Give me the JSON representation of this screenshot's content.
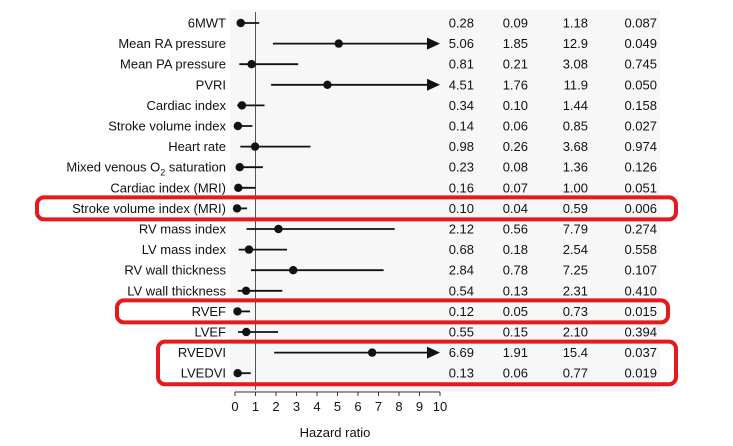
{
  "chart_data": {
    "type": "forest",
    "title": "",
    "xlabel": "Hazard ratio",
    "ylabel": "",
    "xlim": [
      0,
      10
    ],
    "xticks": [
      "0",
      "1",
      "2",
      "3",
      "4",
      "5",
      "6",
      "7",
      "8",
      "9",
      "10"
    ],
    "reference_line": 1,
    "rows": [
      {
        "label": "6MWT",
        "hr": "0.28",
        "lo": "0.09",
        "hi": "1.18",
        "p": "0.087",
        "arrow": false
      },
      {
        "label": "Mean RA pressure",
        "hr": "5.06",
        "lo": "1.85",
        "hi": "12.9",
        "p": "0.049",
        "arrow": true
      },
      {
        "label": "Mean PA pressure",
        "hr": "0.81",
        "lo": "0.21",
        "hi": "3.08",
        "p": "0.745",
        "arrow": false
      },
      {
        "label": "PVRI",
        "hr": "4.51",
        "lo": "1.76",
        "hi": "11.9",
        "p": "0.050",
        "arrow": true
      },
      {
        "label": "Cardiac index",
        "hr": "0.34",
        "lo": "0.10",
        "hi": "1.44",
        "p": "0.158",
        "arrow": false
      },
      {
        "label": "Stroke volume index",
        "hr": "0.14",
        "lo": "0.06",
        "hi": "0.85",
        "p": "0.027",
        "arrow": false
      },
      {
        "label": "Heart rate",
        "hr": "0.98",
        "lo": "0.26",
        "hi": "3.68",
        "p": "0.974",
        "arrow": false
      },
      {
        "label": "Mixed venous O",
        "label_sub": "2",
        "label_suffix": " saturation",
        "hr": "0.23",
        "lo": "0.08",
        "hi": "1.36",
        "p": "0.126",
        "arrow": false
      },
      {
        "label": "Cardiac index (MRI)",
        "hr": "0.16",
        "lo": "0.07",
        "hi": "1.00",
        "p": "0.051",
        "arrow": false
      },
      {
        "label": "Stroke volume index (MRI)",
        "hr": "0.10",
        "lo": "0.04",
        "hi": "0.59",
        "p": "0.006",
        "arrow": false
      },
      {
        "label": "RV mass index",
        "hr": "2.12",
        "lo": "0.56",
        "hi": "7.79",
        "p": "0.274",
        "arrow": false
      },
      {
        "label": "LV mass index",
        "hr": "0.68",
        "lo": "0.18",
        "hi": "2.54",
        "p": "0.558",
        "arrow": false
      },
      {
        "label": "RV wall thickness",
        "hr": "2.84",
        "lo": "0.78",
        "hi": "7.25",
        "p": "0.107",
        "arrow": false
      },
      {
        "label": "LV wall thickness",
        "hr": "0.54",
        "lo": "0.13",
        "hi": "2.31",
        "p": "0.410",
        "arrow": false
      },
      {
        "label": "RVEF",
        "hr": "0.12",
        "lo": "0.05",
        "hi": "0.73",
        "p": "0.015",
        "arrow": false
      },
      {
        "label": "LVEF",
        "hr": "0.55",
        "lo": "0.15",
        "hi": "2.10",
        "p": "0.394",
        "arrow": false
      },
      {
        "label": "RVEDVI",
        "hr": "6.69",
        "lo": "1.91",
        "hi": "15.4",
        "p": "0.037",
        "arrow": true
      },
      {
        "label": "LVEDVI",
        "hr": "0.13",
        "lo": "0.06",
        "hi": "0.77",
        "p": "0.019",
        "arrow": false
      }
    ],
    "highlight_groups": [
      [
        "Stroke volume index (MRI)"
      ],
      [
        "RVEF"
      ],
      [
        "RVEDVI",
        "LVEDVI"
      ]
    ],
    "highlight_color": "#e41a1c",
    "marker_color": "#111111"
  }
}
